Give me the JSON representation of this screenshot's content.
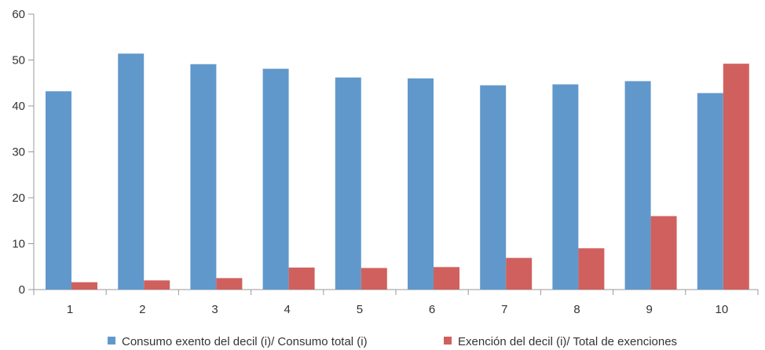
{
  "chart_data": {
    "type": "bar",
    "title": "",
    "xlabel": "",
    "ylabel": "",
    "categories": [
      "1",
      "2",
      "3",
      "4",
      "5",
      "6",
      "7",
      "8",
      "9",
      "10"
    ],
    "ylim": [
      0,
      60
    ],
    "yticks": [
      0,
      10,
      20,
      30,
      40,
      50,
      60
    ],
    "grid": false,
    "legend_position": "bottom",
    "series": [
      {
        "name": "Consumo exento del decil (i)/ Consumo total (i)",
        "color": "#6198CB",
        "values": [
          43.2,
          51.4,
          49.1,
          48.1,
          46.2,
          46.0,
          44.5,
          44.7,
          45.4,
          42.8
        ]
      },
      {
        "name": "Exención del decil (i)/ Total de exenciones",
        "color": "#D0605E",
        "values": [
          1.6,
          2.0,
          2.5,
          4.8,
          4.7,
          4.9,
          6.9,
          9.0,
          16.0,
          49.2
        ]
      }
    ]
  }
}
